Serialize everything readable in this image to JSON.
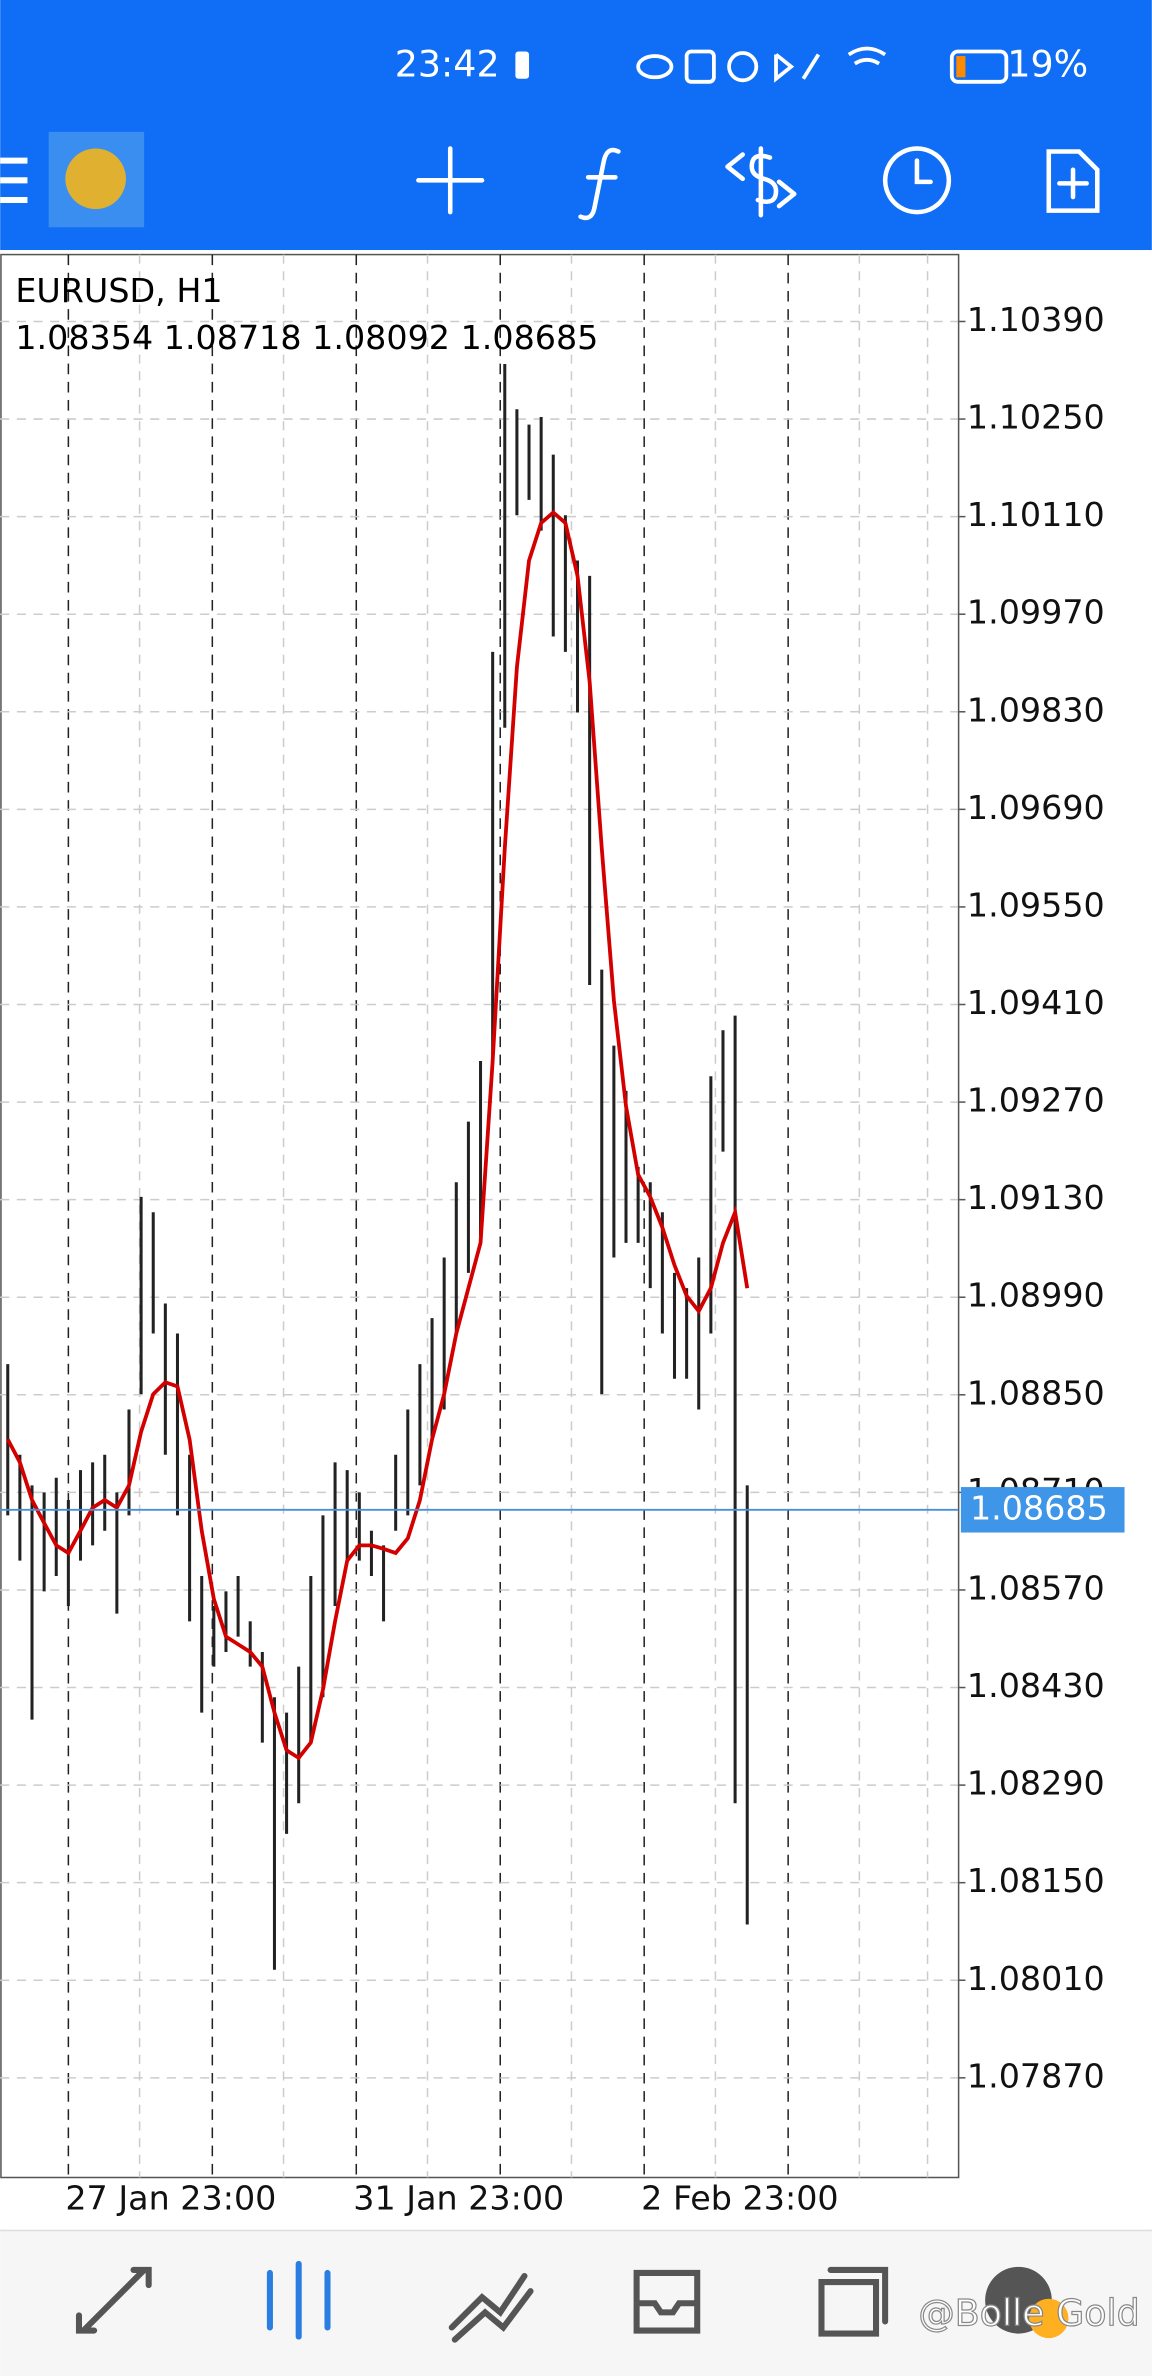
{
  "status_bar": {
    "time": "23:42",
    "battery": "19%"
  },
  "chart": {
    "title": "EURUSD, H1",
    "ohlc": "1.08354 1.08718 1.08092 1.08685",
    "ylim": [
      1.07727,
      1.10486
    ],
    "yticks": [
      {
        "value": 1.1039,
        "label": "1.10390"
      },
      {
        "value": 1.1025,
        "label": "1.10250"
      },
      {
        "value": 1.1011,
        "label": "1.10110"
      },
      {
        "value": 1.0997,
        "label": "1.09970"
      },
      {
        "value": 1.0983,
        "label": "1.09830"
      },
      {
        "value": 1.0969,
        "label": "1.09690"
      },
      {
        "value": 1.0955,
        "label": "1.09550"
      },
      {
        "value": 1.0941,
        "label": "1.09410"
      },
      {
        "value": 1.0927,
        "label": "1.09270"
      },
      {
        "value": 1.0913,
        "label": "1.09130"
      },
      {
        "value": 1.0899,
        "label": "1.08990"
      },
      {
        "value": 1.0885,
        "label": "1.08850"
      },
      {
        "value": 1.0871,
        "label": "1.08710"
      },
      {
        "value": 1.0857,
        "label": "1.08570"
      },
      {
        "value": 1.0843,
        "label": "1.08430"
      },
      {
        "value": 1.0829,
        "label": "1.08290"
      },
      {
        "value": 1.0815,
        "label": "1.08150"
      },
      {
        "value": 1.0801,
        "label": "1.08010"
      },
      {
        "value": 1.0787,
        "label": "1.07870"
      }
    ],
    "xlabels": [
      "27 Jan 23:00",
      "31 Jan 23:00",
      "2 Feb 23:00"
    ],
    "current_price": 1.08685,
    "bar_color": "#222222",
    "ma_color": "#d40000",
    "bars": [
      [
        1.08894,
        1.08677
      ],
      [
        1.08764,
        1.08612
      ],
      [
        1.0872,
        1.08384
      ],
      [
        1.0871,
        1.08568
      ],
      [
        1.08731,
        1.0859
      ],
      [
        1.08699,
        1.08547
      ],
      [
        1.08742,
        1.08612
      ],
      [
        1.08753,
        1.08634
      ],
      [
        1.08764,
        1.08655
      ],
      [
        1.0871,
        1.08536
      ],
      [
        1.08829,
        1.08677
      ],
      [
        1.09134,
        1.08851
      ],
      [
        1.09112,
        1.08938
      ],
      [
        1.08981,
        1.08764
      ],
      [
        1.08938,
        1.08677
      ],
      [
        1.08764,
        1.08525
      ],
      [
        1.0859,
        1.08394
      ],
      [
        1.08547,
        1.0846
      ],
      [
        1.08568,
        1.08481
      ],
      [
        1.0859,
        1.08503
      ],
      [
        1.08525,
        1.0846
      ],
      [
        1.08481,
        1.08351
      ],
      [
        1.08416,
        1.08025
      ],
      [
        1.08394,
        1.0822
      ],
      [
        1.0846,
        1.08264
      ],
      [
        1.0859,
        1.08351
      ],
      [
        1.08677,
        1.08416
      ],
      [
        1.08753,
        1.08547
      ],
      [
        1.08742,
        1.08612
      ],
      [
        1.0871,
        1.08612
      ],
      [
        1.08655,
        1.0859
      ],
      [
        1.08634,
        1.08525
      ],
      [
        1.08764,
        1.08655
      ],
      [
        1.08829,
        1.08677
      ],
      [
        1.08894,
        1.0872
      ],
      [
        1.0896,
        1.08786
      ],
      [
        1.09047,
        1.08829
      ],
      [
        1.09155,
        1.08938
      ],
      [
        1.09242,
        1.09025
      ],
      [
        1.09329,
        1.09068
      ],
      [
        1.09916,
        1.09329
      ],
      [
        1.10329,
        1.09807
      ],
      [
        1.10264,
        1.10112
      ],
      [
        1.10242,
        1.10134
      ],
      [
        1.10253,
        1.1009
      ],
      [
        1.10199,
        1.09938
      ],
      [
        1.10112,
        1.09916
      ],
      [
        1.10047,
        1.09829
      ],
      [
        1.10025,
        1.09438
      ],
      [
        1.0946,
        1.08851
      ],
      [
        1.09351,
        1.09047
      ],
      [
        1.09286,
        1.09068
      ],
      [
        1.09177,
        1.09068
      ],
      [
        1.09155,
        1.09003
      ],
      [
        1.09112,
        1.08938
      ],
      [
        1.09025,
        1.08873
      ],
      [
        1.09003,
        1.08873
      ],
      [
        1.09047,
        1.08829
      ],
      [
        1.09307,
        1.08938
      ],
      [
        1.09373,
        1.09199
      ],
      [
        1.09394,
        1.08264
      ],
      [
        1.0872,
        1.0809
      ]
    ],
    "ma": [
      1.08786,
      1.08753,
      1.08699,
      1.08666,
      1.08634,
      1.08623,
      1.08655,
      1.08688,
      1.08699,
      1.08688,
      1.0872,
      1.08797,
      1.08851,
      1.08868,
      1.08862,
      1.08786,
      1.08655,
      1.08557,
      1.08503,
      1.08492,
      1.08481,
      1.0846,
      1.08394,
      1.0834,
      1.08329,
      1.08351,
      1.08427,
      1.08525,
      1.08612,
      1.08634,
      1.08634,
      1.08629,
      1.08623,
      1.08644,
      1.08699,
      1.08786,
      1.08851,
      1.08938,
      1.09003,
      1.09068,
      1.09329,
      1.09634,
      1.09894,
      1.10047,
      1.10101,
      1.10116,
      1.10101,
      1.10025,
      1.09873,
      1.09634,
      1.09416,
      1.09264,
      1.09166,
      1.09134,
      1.0909,
      1.09036,
      1.08992,
      1.0897,
      1.09003,
      1.09068,
      1.09112,
      1.09003
    ]
  },
  "watermark": "@Bolle Gold"
}
